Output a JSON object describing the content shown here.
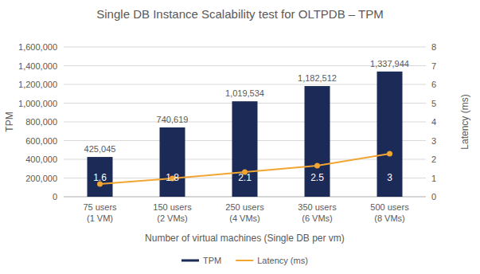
{
  "chart_data": {
    "type": "bar",
    "title": "Single DB Instance Scalability test for OLTPDB – TPM",
    "x_label": "Number of virtual machines (Single DB per vm)",
    "y_label": "TPM",
    "y2_label": "Latency (ms)",
    "categories": [
      "75 users\n(1 VM)",
      "150 users\n(2 VMs)",
      "250 users\n(4 VMs)",
      "350 users\n(6 VMs)",
      "500 users\n(8 VMs)"
    ],
    "series": [
      {
        "name": "TPM",
        "type": "bar",
        "color": "#1b2a56",
        "values": [
          425045,
          740619,
          1019534,
          1182512,
          1337944
        ],
        "value_labels": [
          "425,045",
          "740,619",
          "1,019,534",
          "1,182,512",
          "1,337,944"
        ]
      },
      {
        "name": "Latency (ms)",
        "type": "line",
        "axis": "y2",
        "color": "#f2a531",
        "marker": "circle",
        "values": [
          0.68,
          0.98,
          1.32,
          1.66,
          2.3
        ]
      }
    ],
    "annotations": [
      1.6,
      1.8,
      2.1,
      2.5,
      3
    ],
    "ylim": [
      0,
      1600000
    ],
    "yticks": [
      0,
      {
        "value": 200000,
        "label": "200,000"
      },
      {
        "value": 400000,
        "label": "400,000"
      },
      {
        "value": 600000,
        "label": "600,000"
      },
      {
        "value": 800000,
        "label": "800,000"
      },
      {
        "value": 1000000,
        "label": "1,000,000"
      },
      {
        "value": 1200000,
        "label": "1,200,000"
      },
      {
        "value": 1400000,
        "label": "1,400,000"
      },
      {
        "value": 1600000,
        "label": "1,600,000"
      }
    ],
    "y2lim": [
      0,
      8
    ],
    "y2ticks": [
      0,
      1,
      2,
      3,
      4,
      5,
      6,
      7,
      8
    ],
    "grid": true,
    "data_labels": true,
    "legend": "bottom"
  }
}
